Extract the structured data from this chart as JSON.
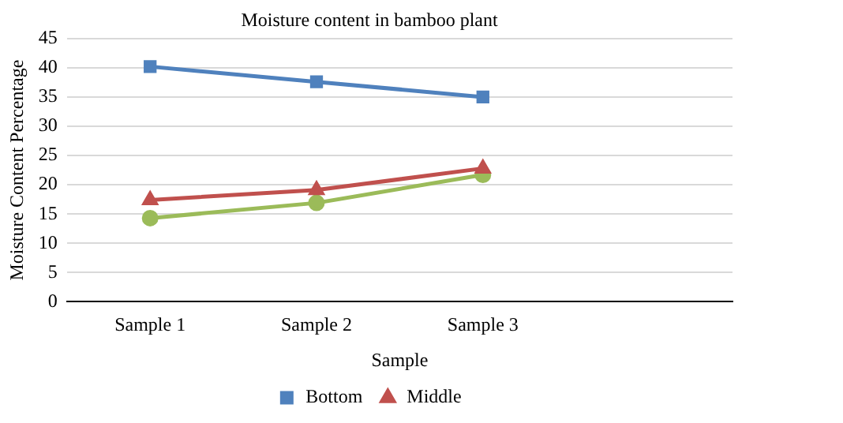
{
  "chart_data": {
    "type": "line",
    "title": "Moisture content in bamboo plant",
    "xlabel": "Sample",
    "ylabel": "Moisture Content Percentage",
    "categories": [
      "Sample 1",
      "Sample 2",
      "Sample 3",
      null
    ],
    "series": [
      {
        "name": "Bottom",
        "color": "#4f81bd",
        "marker": "square",
        "values": [
          40.2,
          37.6,
          35.0,
          null
        ]
      },
      {
        "name": "Middle",
        "color": "#c0504d",
        "marker": "triangle",
        "values": [
          17.4,
          19.1,
          22.8,
          null
        ]
      },
      {
        "color": "#9bbb59",
        "marker": "circle",
        "values": [
          14.3,
          16.9,
          21.7,
          null
        ]
      }
    ],
    "ylim": [
      0,
      45
    ],
    "yticks": [
      0,
      5,
      10,
      15,
      20,
      25,
      30,
      35,
      40,
      45
    ],
    "grid": "y",
    "legend": "bottom"
  }
}
